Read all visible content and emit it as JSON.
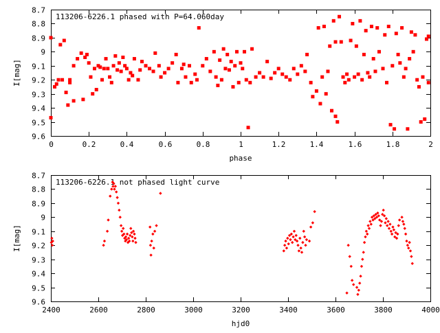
{
  "chart_data": [
    {
      "type": "scatter",
      "title": "113206-6226.1 phased with P=64.060day",
      "xlabel": "phase",
      "ylabel": "I[mag]",
      "xlim": [
        0,
        2
      ],
      "ylim": [
        9.6,
        8.7
      ],
      "y_inverted": true,
      "x_ticks": [
        "0",
        "0.2",
        "0.4",
        "0.6",
        "0.8",
        "1",
        "1.2",
        "1.4",
        "1.6",
        "1.8",
        "2"
      ],
      "x_tick_values": [
        0,
        0.2,
        0.4,
        0.6,
        0.8,
        1.0,
        1.2,
        1.4,
        1.6,
        1.8,
        2.0
      ],
      "y_ticks": [
        "8.7",
        "8.8",
        "8.9",
        "9",
        "9.1",
        "9.2",
        "9.3",
        "9.4",
        "9.5",
        "9.6"
      ],
      "y_tick_values": [
        8.7,
        8.8,
        8.9,
        9.0,
        9.1,
        9.2,
        9.3,
        9.4,
        9.5,
        9.6
      ],
      "grid": false,
      "marker": "filled-square",
      "color": "#ff0000",
      "points": [
        [
          0.0,
          8.9
        ],
        [
          0.0,
          9.47
        ],
        [
          0.02,
          9.25
        ],
        [
          0.03,
          9.23
        ],
        [
          0.04,
          9.2
        ],
        [
          0.05,
          8.95
        ],
        [
          0.06,
          9.2
        ],
        [
          0.07,
          8.92
        ],
        [
          0.08,
          9.29
        ],
        [
          0.09,
          9.38
        ],
        [
          0.1,
          9.22
        ],
        [
          0.1,
          9.2
        ],
        [
          0.12,
          9.35
        ],
        [
          0.12,
          9.1
        ],
        [
          0.14,
          9.05
        ],
        [
          0.16,
          9.01
        ],
        [
          0.17,
          9.34
        ],
        [
          0.18,
          9.04
        ],
        [
          0.19,
          9.02
        ],
        [
          0.2,
          9.08
        ],
        [
          0.21,
          9.18
        ],
        [
          0.22,
          9.3
        ],
        [
          0.23,
          9.12
        ],
        [
          0.24,
          9.27
        ],
        [
          0.25,
          9.1
        ],
        [
          0.26,
          9.11
        ],
        [
          0.27,
          9.2
        ],
        [
          0.28,
          9.12
        ],
        [
          0.29,
          9.05
        ],
        [
          0.3,
          9.12
        ],
        [
          0.31,
          9.18
        ],
        [
          0.32,
          9.22
        ],
        [
          0.33,
          9.1
        ],
        [
          0.34,
          9.03
        ],
        [
          0.35,
          9.13
        ],
        [
          0.36,
          9.08
        ],
        [
          0.37,
          9.14
        ],
        [
          0.38,
          9.04
        ],
        [
          0.39,
          9.1
        ],
        [
          0.4,
          9.12
        ],
        [
          0.41,
          9.2
        ],
        [
          0.42,
          9.15
        ],
        [
          0.43,
          9.17
        ],
        [
          0.44,
          9.05
        ],
        [
          0.46,
          9.2
        ],
        [
          0.47,
          9.13
        ],
        [
          0.48,
          9.07
        ],
        [
          0.5,
          9.1
        ],
        [
          0.52,
          9.12
        ],
        [
          0.54,
          9.14
        ],
        [
          0.55,
          9.01
        ],
        [
          0.57,
          9.1
        ],
        [
          0.58,
          9.18
        ],
        [
          0.6,
          9.15
        ],
        [
          0.62,
          9.12
        ],
        [
          0.64,
          9.08
        ],
        [
          0.66,
          9.02
        ],
        [
          0.67,
          9.22
        ],
        [
          0.69,
          9.12
        ],
        [
          0.7,
          9.09
        ],
        [
          0.71,
          9.18
        ],
        [
          0.73,
          9.1
        ],
        [
          0.74,
          9.22
        ],
        [
          0.76,
          9.16
        ],
        [
          0.77,
          9.2
        ],
        [
          0.78,
          8.83
        ],
        [
          0.8,
          9.1
        ],
        [
          0.82,
          9.05
        ],
        [
          0.84,
          9.14
        ],
        [
          0.86,
          9.0
        ],
        [
          0.87,
          9.18
        ],
        [
          0.88,
          9.24
        ],
        [
          0.89,
          9.06
        ],
        [
          0.9,
          9.2
        ],
        [
          0.91,
          8.98
        ],
        [
          0.92,
          9.12
        ],
        [
          0.93,
          9.02
        ],
        [
          0.94,
          9.13
        ],
        [
          0.95,
          9.07
        ],
        [
          0.96,
          9.25
        ],
        [
          0.97,
          9.1
        ],
        [
          0.98,
          9.0
        ],
        [
          0.99,
          9.22
        ],
        [
          1.0,
          9.08
        ],
        [
          1.01,
          9.12
        ],
        [
          1.02,
          9.0
        ],
        [
          1.03,
          9.2
        ],
        [
          1.04,
          9.54
        ],
        [
          1.05,
          9.22
        ],
        [
          1.06,
          8.98
        ],
        [
          1.08,
          9.18
        ],
        [
          1.1,
          9.15
        ],
        [
          1.12,
          9.18
        ],
        [
          1.14,
          9.07
        ],
        [
          1.16,
          9.19
        ],
        [
          1.18,
          9.15
        ],
        [
          1.2,
          9.12
        ],
        [
          1.22,
          9.16
        ],
        [
          1.24,
          9.18
        ],
        [
          1.26,
          9.2
        ],
        [
          1.28,
          9.12
        ],
        [
          1.3,
          9.16
        ],
        [
          1.32,
          9.1
        ],
        [
          1.34,
          9.14
        ],
        [
          1.35,
          9.02
        ],
        [
          1.37,
          9.22
        ],
        [
          1.38,
          9.32
        ],
        [
          1.4,
          9.28
        ],
        [
          1.41,
          8.83
        ],
        [
          1.42,
          9.37
        ],
        [
          1.43,
          9.18
        ],
        [
          1.44,
          8.82
        ],
        [
          1.45,
          9.3
        ],
        [
          1.46,
          9.14
        ],
        [
          1.47,
          8.96
        ],
        [
          1.48,
          9.42
        ],
        [
          1.49,
          8.78
        ],
        [
          1.5,
          9.46
        ],
        [
          1.5,
          8.93
        ],
        [
          1.51,
          9.5
        ],
        [
          1.52,
          8.75
        ],
        [
          1.53,
          8.93
        ],
        [
          1.54,
          9.18
        ],
        [
          1.55,
          9.22
        ],
        [
          1.56,
          9.16
        ],
        [
          1.57,
          9.2
        ],
        [
          1.58,
          8.92
        ],
        [
          1.59,
          8.8
        ],
        [
          1.6,
          9.18
        ],
        [
          1.61,
          8.96
        ],
        [
          1.62,
          9.16
        ],
        [
          1.63,
          8.78
        ],
        [
          1.64,
          9.2
        ],
        [
          1.65,
          9.02
        ],
        [
          1.66,
          8.85
        ],
        [
          1.67,
          9.15
        ],
        [
          1.68,
          9.18
        ],
        [
          1.69,
          8.82
        ],
        [
          1.7,
          9.05
        ],
        [
          1.71,
          9.14
        ],
        [
          1.72,
          8.83
        ],
        [
          1.73,
          9.0
        ],
        [
          1.75,
          9.12
        ],
        [
          1.76,
          8.88
        ],
        [
          1.77,
          9.22
        ],
        [
          1.78,
          8.82
        ],
        [
          1.79,
          9.52
        ],
        [
          1.8,
          9.1
        ],
        [
          1.81,
          9.55
        ],
        [
          1.82,
          8.87
        ],
        [
          1.83,
          9.02
        ],
        [
          1.84,
          9.08
        ],
        [
          1.85,
          8.83
        ],
        [
          1.86,
          9.18
        ],
        [
          1.87,
          9.12
        ],
        [
          1.88,
          9.55
        ],
        [
          1.89,
          9.05
        ],
        [
          1.9,
          8.86
        ],
        [
          1.91,
          9.0
        ],
        [
          1.92,
          8.88
        ],
        [
          1.93,
          9.2
        ],
        [
          1.94,
          9.25
        ],
        [
          1.95,
          9.5
        ],
        [
          1.96,
          9.18
        ],
        [
          1.97,
          9.48
        ],
        [
          1.98,
          8.91
        ],
        [
          1.99,
          8.89
        ],
        [
          1.99,
          9.22
        ]
      ]
    },
    {
      "type": "scatter",
      "title": "113206-6226.1 not phased light curve",
      "xlabel": "hjd0",
      "ylabel": "I[mag]",
      "xlim": [
        2400,
        4000
      ],
      "ylim": [
        9.6,
        8.7
      ],
      "y_inverted": true,
      "x_ticks": [
        "2400",
        "2600",
        "2800",
        "3000",
        "3200",
        "3400",
        "3600",
        "3800",
        "4000"
      ],
      "x_tick_values": [
        2400,
        2600,
        2800,
        3000,
        3200,
        3400,
        3600,
        3800,
        4000
      ],
      "y_ticks": [
        "8.7",
        "8.8",
        "8.9",
        "9",
        "9.1",
        "9.2",
        "9.3",
        "9.4",
        "9.5",
        "9.6"
      ],
      "y_tick_values": [
        8.7,
        8.8,
        8.9,
        9.0,
        9.1,
        9.2,
        9.3,
        9.4,
        9.5,
        9.6
      ],
      "grid": false,
      "marker": "small-diamond",
      "color": "#ff0000",
      "points": [
        [
          2402,
          9.18
        ],
        [
          2404,
          9.15
        ],
        [
          2406,
          9.2
        ],
        [
          2408,
          9.17
        ],
        [
          2622,
          9.2
        ],
        [
          2626,
          9.17
        ],
        [
          2638,
          9.1
        ],
        [
          2642,
          9.02
        ],
        [
          2650,
          8.85
        ],
        [
          2656,
          8.8
        ],
        [
          2660,
          8.75
        ],
        [
          2662,
          8.78
        ],
        [
          2665,
          8.76
        ],
        [
          2668,
          8.8
        ],
        [
          2672,
          8.78
        ],
        [
          2676,
          8.82
        ],
        [
          2680,
          8.86
        ],
        [
          2684,
          8.9
        ],
        [
          2688,
          8.95
        ],
        [
          2692,
          9.0
        ],
        [
          2696,
          9.06
        ],
        [
          2699,
          9.1
        ],
        [
          2702,
          9.13
        ],
        [
          2705,
          9.08
        ],
        [
          2708,
          9.12
        ],
        [
          2711,
          9.15
        ],
        [
          2714,
          9.17
        ],
        [
          2716,
          9.14
        ],
        [
          2719,
          9.16
        ],
        [
          2722,
          9.12
        ],
        [
          2725,
          9.18
        ],
        [
          2728,
          9.15
        ],
        [
          2731,
          9.17
        ],
        [
          2734,
          9.13
        ],
        [
          2737,
          9.08
        ],
        [
          2740,
          9.11
        ],
        [
          2743,
          9.14
        ],
        [
          2746,
          9.17
        ],
        [
          2748,
          9.1
        ],
        [
          2752,
          9.12
        ],
        [
          2755,
          9.15
        ],
        [
          2758,
          9.18
        ],
        [
          2818,
          9.07
        ],
        [
          2820,
          9.2
        ],
        [
          2822,
          9.27
        ],
        [
          2825,
          9.17
        ],
        [
          2830,
          9.12
        ],
        [
          2834,
          9.22
        ],
        [
          2838,
          9.1
        ],
        [
          2845,
          9.06
        ],
        [
          2862,
          8.83
        ],
        [
          3382,
          9.24
        ],
        [
          3386,
          9.2
        ],
        [
          3390,
          9.17
        ],
        [
          3394,
          9.22
        ],
        [
          3398,
          9.15
        ],
        [
          3402,
          9.19
        ],
        [
          3406,
          9.13
        ],
        [
          3410,
          9.16
        ],
        [
          3414,
          9.12
        ],
        [
          3418,
          9.18
        ],
        [
          3422,
          9.14
        ],
        [
          3426,
          9.1
        ],
        [
          3430,
          9.16
        ],
        [
          3434,
          9.13
        ],
        [
          3438,
          9.17
        ],
        [
          3442,
          9.2
        ],
        [
          3446,
          9.24
        ],
        [
          3450,
          9.15
        ],
        [
          3454,
          9.22
        ],
        [
          3458,
          9.25
        ],
        [
          3462,
          9.18
        ],
        [
          3466,
          9.1
        ],
        [
          3470,
          9.14
        ],
        [
          3474,
          9.2
        ],
        [
          3478,
          9.16
        ],
        [
          3490,
          9.17
        ],
        [
          3496,
          9.07
        ],
        [
          3504,
          9.04
        ],
        [
          3512,
          8.96
        ],
        [
          3648,
          9.54
        ],
        [
          3654,
          9.2
        ],
        [
          3660,
          9.28
        ],
        [
          3666,
          9.35
        ],
        [
          3670,
          9.45
        ],
        [
          3676,
          9.48
        ],
        [
          3690,
          9.5
        ],
        [
          3694,
          9.55
        ],
        [
          3698,
          9.52
        ],
        [
          3702,
          9.47
        ],
        [
          3706,
          9.42
        ],
        [
          3710,
          9.35
        ],
        [
          3714,
          9.3
        ],
        [
          3718,
          9.25
        ],
        [
          3722,
          9.18
        ],
        [
          3726,
          9.14
        ],
        [
          3730,
          9.1
        ],
        [
          3734,
          9.12
        ],
        [
          3738,
          9.06
        ],
        [
          3742,
          9.08
        ],
        [
          3746,
          9.03
        ],
        [
          3750,
          9.05
        ],
        [
          3754,
          9.0
        ],
        [
          3758,
          9.02
        ],
        [
          3762,
          8.99
        ],
        [
          3766,
          9.01
        ],
        [
          3770,
          8.98
        ],
        [
          3774,
          9.0
        ],
        [
          3778,
          8.97
        ],
        [
          3782,
          8.99
        ],
        [
          3786,
          9.02
        ],
        [
          3790,
          9.06
        ],
        [
          3794,
          9.03
        ],
        [
          3798,
          8.98
        ],
        [
          3802,
          8.95
        ],
        [
          3806,
          8.99
        ],
        [
          3810,
          9.04
        ],
        [
          3814,
          9.01
        ],
        [
          3818,
          9.06
        ],
        [
          3822,
          9.03
        ],
        [
          3826,
          9.08
        ],
        [
          3830,
          9.05
        ],
        [
          3834,
          9.1
        ],
        [
          3838,
          9.12
        ],
        [
          3842,
          9.07
        ],
        [
          3846,
          9.09
        ],
        [
          3850,
          9.14
        ],
        [
          3854,
          9.11
        ],
        [
          3858,
          9.15
        ],
        [
          3862,
          9.12
        ],
        [
          3866,
          9.06
        ],
        [
          3870,
          9.02
        ],
        [
          3880,
          9.0
        ],
        [
          3884,
          9.03
        ],
        [
          3888,
          9.05
        ],
        [
          3892,
          9.08
        ],
        [
          3896,
          9.12
        ],
        [
          3900,
          9.17
        ],
        [
          3904,
          9.2
        ],
        [
          3908,
          9.22
        ],
        [
          3912,
          9.18
        ],
        [
          3916,
          9.24
        ],
        [
          3920,
          9.28
        ],
        [
          3924,
          9.33
        ]
      ]
    }
  ]
}
